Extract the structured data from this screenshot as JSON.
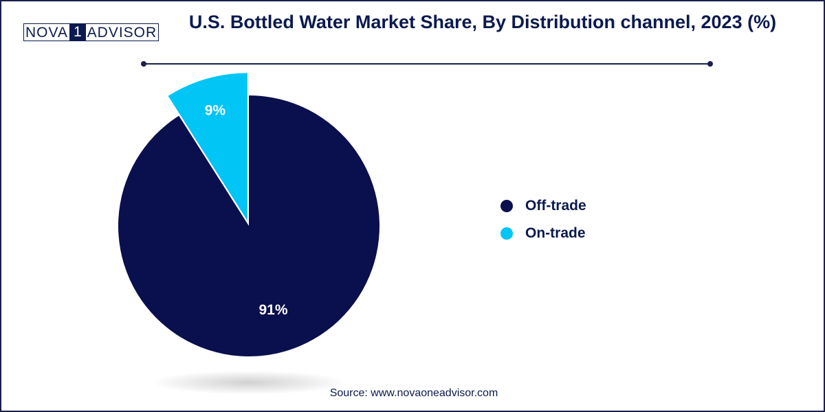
{
  "logo": {
    "part1": "NOVA",
    "part2": "1",
    "part3": "ADVISOR"
  },
  "chart_data": {
    "type": "pie",
    "title": "U.S. Bottled Water Market Share, By Distribution channel, 2023 (%)",
    "slices": [
      {
        "label": "Off-trade",
        "value": 91,
        "display": "91%",
        "color": "#0a0f4d"
      },
      {
        "label": "On-trade",
        "value": 9,
        "display": "9%",
        "color": "#00c5f5"
      }
    ],
    "legend_position": "right",
    "exploded_slice": "On-trade"
  },
  "source": "Source: www.novaoneadvisor.com"
}
